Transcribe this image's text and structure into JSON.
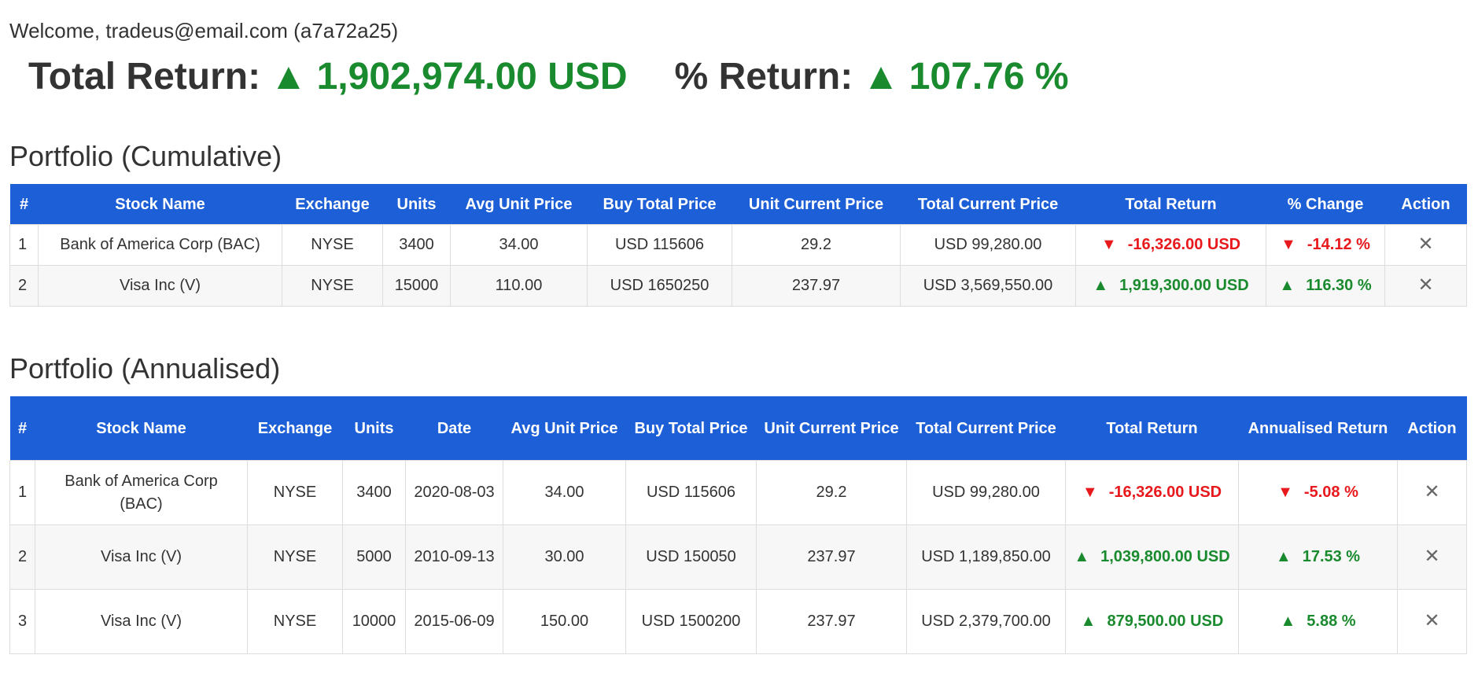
{
  "welcome": {
    "prefix": "Welcome, ",
    "email": "tradeus@email.com",
    "id": "(a7a72a25)"
  },
  "summary": {
    "total_return_label": "Total Return:",
    "total_return_arrow": "▲",
    "total_return_value": "1,902,974.00 USD",
    "pct_return_label": "% Return:",
    "pct_return_arrow": "▲",
    "pct_return_value": "107.76 %"
  },
  "colors": {
    "header_bg": "#1d5fd6",
    "positive": "#1a8a2e",
    "negative": "#e8191c"
  },
  "icons": {
    "up": "up-triangle-icon",
    "down": "down-triangle-icon",
    "remove": "close-icon"
  },
  "cumulative": {
    "title": "Portfolio (Cumulative)",
    "headers": [
      "#",
      "Stock Name",
      "Exchange",
      "Units",
      "Avg Unit Price",
      "Buy Total Price",
      "Unit Current Price",
      "Total Current Price",
      "Total Return",
      "% Change",
      "Action"
    ],
    "rows": [
      {
        "idx": "1",
        "stock": "Bank of America Corp (BAC)",
        "exchange": "NYSE",
        "units": "3400",
        "avg_price": "34.00",
        "buy_total": "USD 115606",
        "unit_current": "29.2",
        "total_current": "USD 99,280.00",
        "total_return": "-16,326.00 USD",
        "change": "-14.12 %",
        "direction": "down",
        "action": "✕"
      },
      {
        "idx": "2",
        "stock": "Visa Inc (V)",
        "exchange": "NYSE",
        "units": "15000",
        "avg_price": "110.00",
        "buy_total": "USD 1650250",
        "unit_current": "237.97",
        "total_current": "USD 3,569,550.00",
        "total_return": "1,919,300.00 USD",
        "change": "116.30 %",
        "direction": "up",
        "action": "✕"
      }
    ]
  },
  "annualised": {
    "title": "Portfolio (Annualised)",
    "headers": [
      "#",
      "Stock Name",
      "Exchange",
      "Units",
      "Date",
      "Avg Unit Price",
      "Buy Total Price",
      "Unit Current Price",
      "Total Current Price",
      "Total Return",
      "Annualised Return",
      "Action"
    ],
    "rows": [
      {
        "idx": "1",
        "stock": "Bank of America Corp (BAC)",
        "exchange": "NYSE",
        "units": "3400",
        "date": "2020-08-03",
        "avg_price": "34.00",
        "buy_total": "USD 115606",
        "unit_current": "29.2",
        "total_current": "USD 99,280.00",
        "total_return": "-16,326.00 USD",
        "annualised": "-5.08 %",
        "direction": "down",
        "action": "✕"
      },
      {
        "idx": "2",
        "stock": "Visa Inc (V)",
        "exchange": "NYSE",
        "units": "5000",
        "date": "2010-09-13",
        "avg_price": "30.00",
        "buy_total": "USD 150050",
        "unit_current": "237.97",
        "total_current": "USD 1,189,850.00",
        "total_return": "1,039,800.00 USD",
        "annualised": "17.53 %",
        "direction": "up",
        "action": "✕"
      },
      {
        "idx": "3",
        "stock": "Visa Inc (V)",
        "exchange": "NYSE",
        "units": "10000",
        "date": "2015-06-09",
        "avg_price": "150.00",
        "buy_total": "USD 1500200",
        "unit_current": "237.97",
        "total_current": "USD 2,379,700.00",
        "total_return": "879,500.00 USD",
        "annualised": "5.88 %",
        "direction": "up",
        "action": "✕"
      }
    ]
  }
}
